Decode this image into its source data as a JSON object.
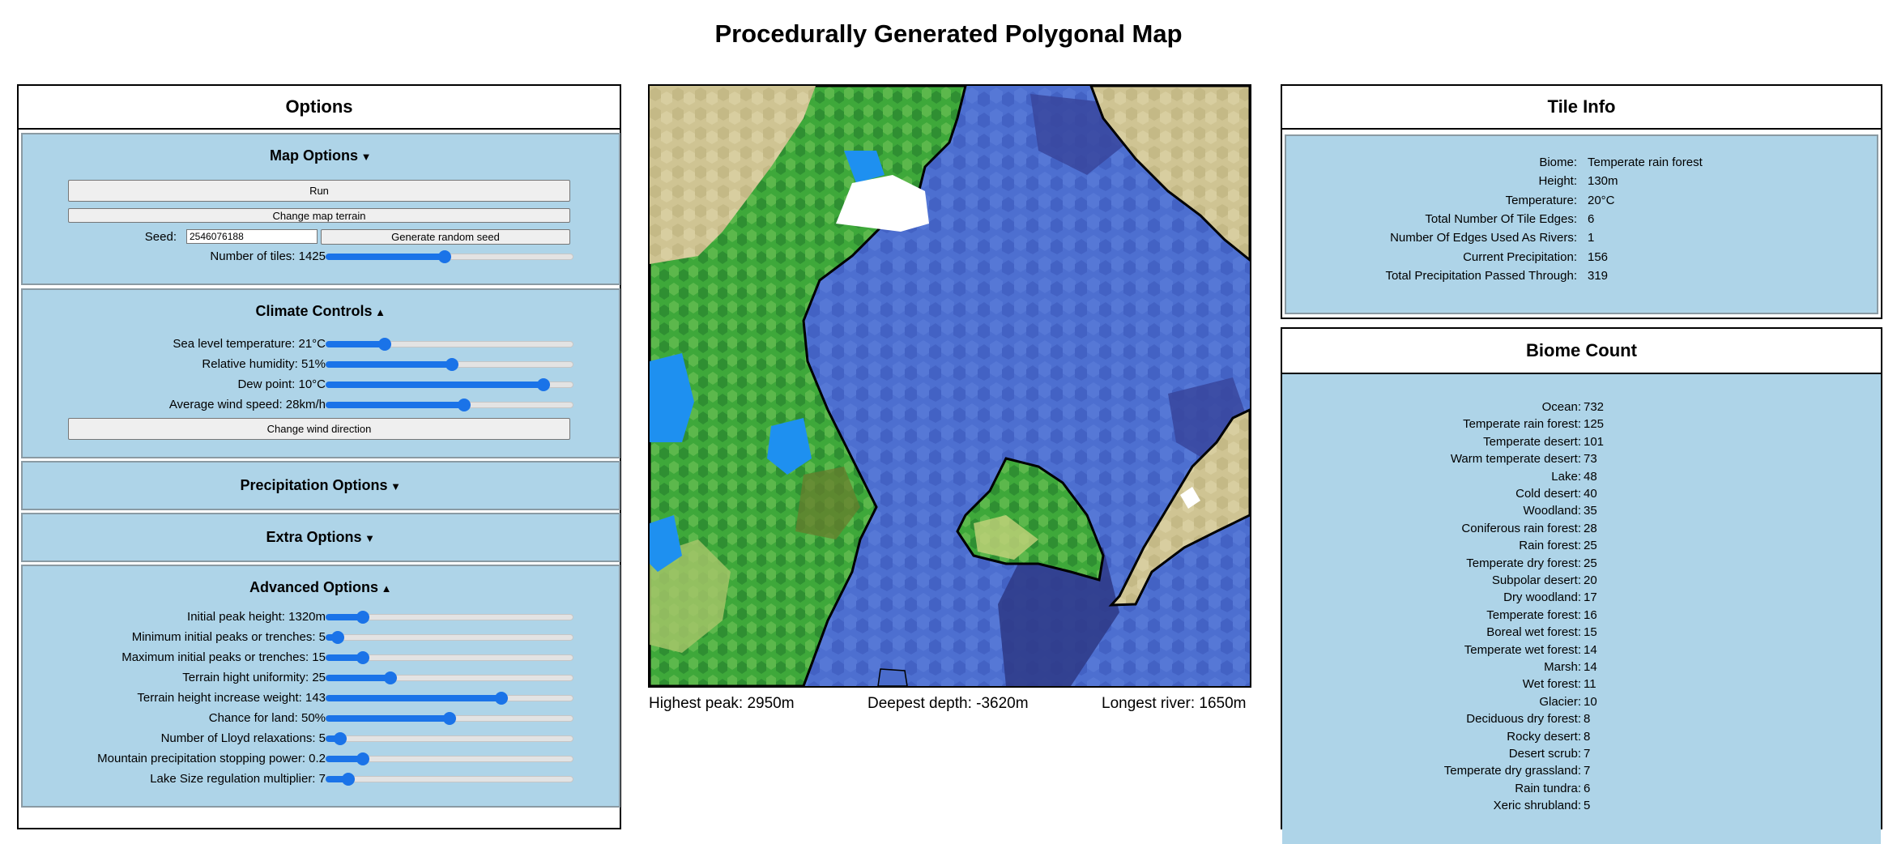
{
  "page_title": "Procedurally Generated Polygonal Map",
  "options": {
    "title": "Options",
    "map_options": {
      "title": "Map Options",
      "run": "Run",
      "change_terrain": "Change map terrain",
      "seed_label": "Seed:",
      "seed_value": "2546076188",
      "random_seed": "Generate random seed",
      "tiles_label": "Number of tiles: 1425",
      "tiles_level": 0.48
    },
    "climate": {
      "title": "Climate Controls",
      "rows": [
        {
          "label": "Sea level temperature: 21°C",
          "level": 0.24
        },
        {
          "label": "Relative humidity: 51%",
          "level": 0.51
        },
        {
          "label": "Dew point: 10°C",
          "level": 0.88
        },
        {
          "label": "Average wind speed: 28km/h",
          "level": 0.56
        }
      ],
      "wind_button": "Change wind direction"
    },
    "precipitation": {
      "title": "Precipitation Options"
    },
    "extra": {
      "title": "Extra Options"
    },
    "advanced": {
      "title": "Advanced Options",
      "rows": [
        {
          "label": "Initial peak height: 1320m",
          "level": 0.15
        },
        {
          "label": "Minimum initial peaks or trenches: 5",
          "level": 0.05
        },
        {
          "label": "Maximum initial peaks or trenches: 15",
          "level": 0.15
        },
        {
          "label": "Terrain hight uniformity: 25",
          "level": 0.26
        },
        {
          "label": "Terrain height increase weight: 143",
          "level": 0.71
        },
        {
          "label": "Chance for land: 50%",
          "level": 0.5
        },
        {
          "label": "Number of Lloyd relaxations: 5",
          "level": 0.06
        },
        {
          "label": "Mountain precipitation stopping power: 0.2",
          "level": 0.15
        },
        {
          "label": "Lake Size regulation multiplier: 7",
          "level": 0.09
        }
      ]
    }
  },
  "map_stats": {
    "highest_peak": "Highest peak: 2950m",
    "deepest_depth": "Deepest depth: -3620m",
    "longest_river": "Longest river: 1650m"
  },
  "tile_info": {
    "title": "Tile Info",
    "rows": [
      {
        "k": "Biome:",
        "v": "Temperate rain forest"
      },
      {
        "k": "Height:",
        "v": "130m"
      },
      {
        "k": "Temperature:",
        "v": "20°C"
      },
      {
        "k": "Total Number Of Tile Edges:",
        "v": "6"
      },
      {
        "k": "Number Of Edges Used As Rivers:",
        "v": "1"
      },
      {
        "k": "Current Precipitation:",
        "v": "156"
      },
      {
        "k": "Total Precipitation Passed Through:",
        "v": "319"
      }
    ]
  },
  "biome_count": {
    "title": "Biome Count",
    "rows": [
      {
        "k": "Ocean:",
        "v": "732"
      },
      {
        "k": "Temperate rain forest:",
        "v": "125"
      },
      {
        "k": "Temperate desert:",
        "v": "101"
      },
      {
        "k": "Warm temperate desert:",
        "v": "73"
      },
      {
        "k": "Lake:",
        "v": "48"
      },
      {
        "k": "Cold desert:",
        "v": "40"
      },
      {
        "k": "Woodland:",
        "v": "35"
      },
      {
        "k": "Coniferous rain forest:",
        "v": "28"
      },
      {
        "k": "Rain forest:",
        "v": "25"
      },
      {
        "k": "Temperate dry forest:",
        "v": "25"
      },
      {
        "k": "Subpolar desert:",
        "v": "20"
      },
      {
        "k": "Dry woodland:",
        "v": "17"
      },
      {
        "k": "Temperate forest:",
        "v": "16"
      },
      {
        "k": "Boreal wet forest:",
        "v": "15"
      },
      {
        "k": "Temperate wet forest:",
        "v": "14"
      },
      {
        "k": "Marsh:",
        "v": "14"
      },
      {
        "k": "Wet forest:",
        "v": "11"
      },
      {
        "k": "Glacier:",
        "v": "10"
      },
      {
        "k": "Deciduous dry forest:",
        "v": "8"
      },
      {
        "k": "Rocky desert:",
        "v": "8"
      },
      {
        "k": "Desert scrub:",
        "v": "7"
      },
      {
        "k": "Temperate dry grassland:",
        "v": "7"
      },
      {
        "k": "Rain tundra:",
        "v": "6"
      },
      {
        "k": "Xeric shrubland:",
        "v": "5"
      }
    ]
  },
  "colors": {
    "panel_bg": "#aed4e8",
    "slider_accent": "#1a73e8",
    "ocean": "#4a6ccc",
    "deep_ocean": "#303c8a",
    "forest": "#3ea83a",
    "desert": "#cfc493",
    "lake": "#1e90f0",
    "glacier": "#ffffff"
  }
}
